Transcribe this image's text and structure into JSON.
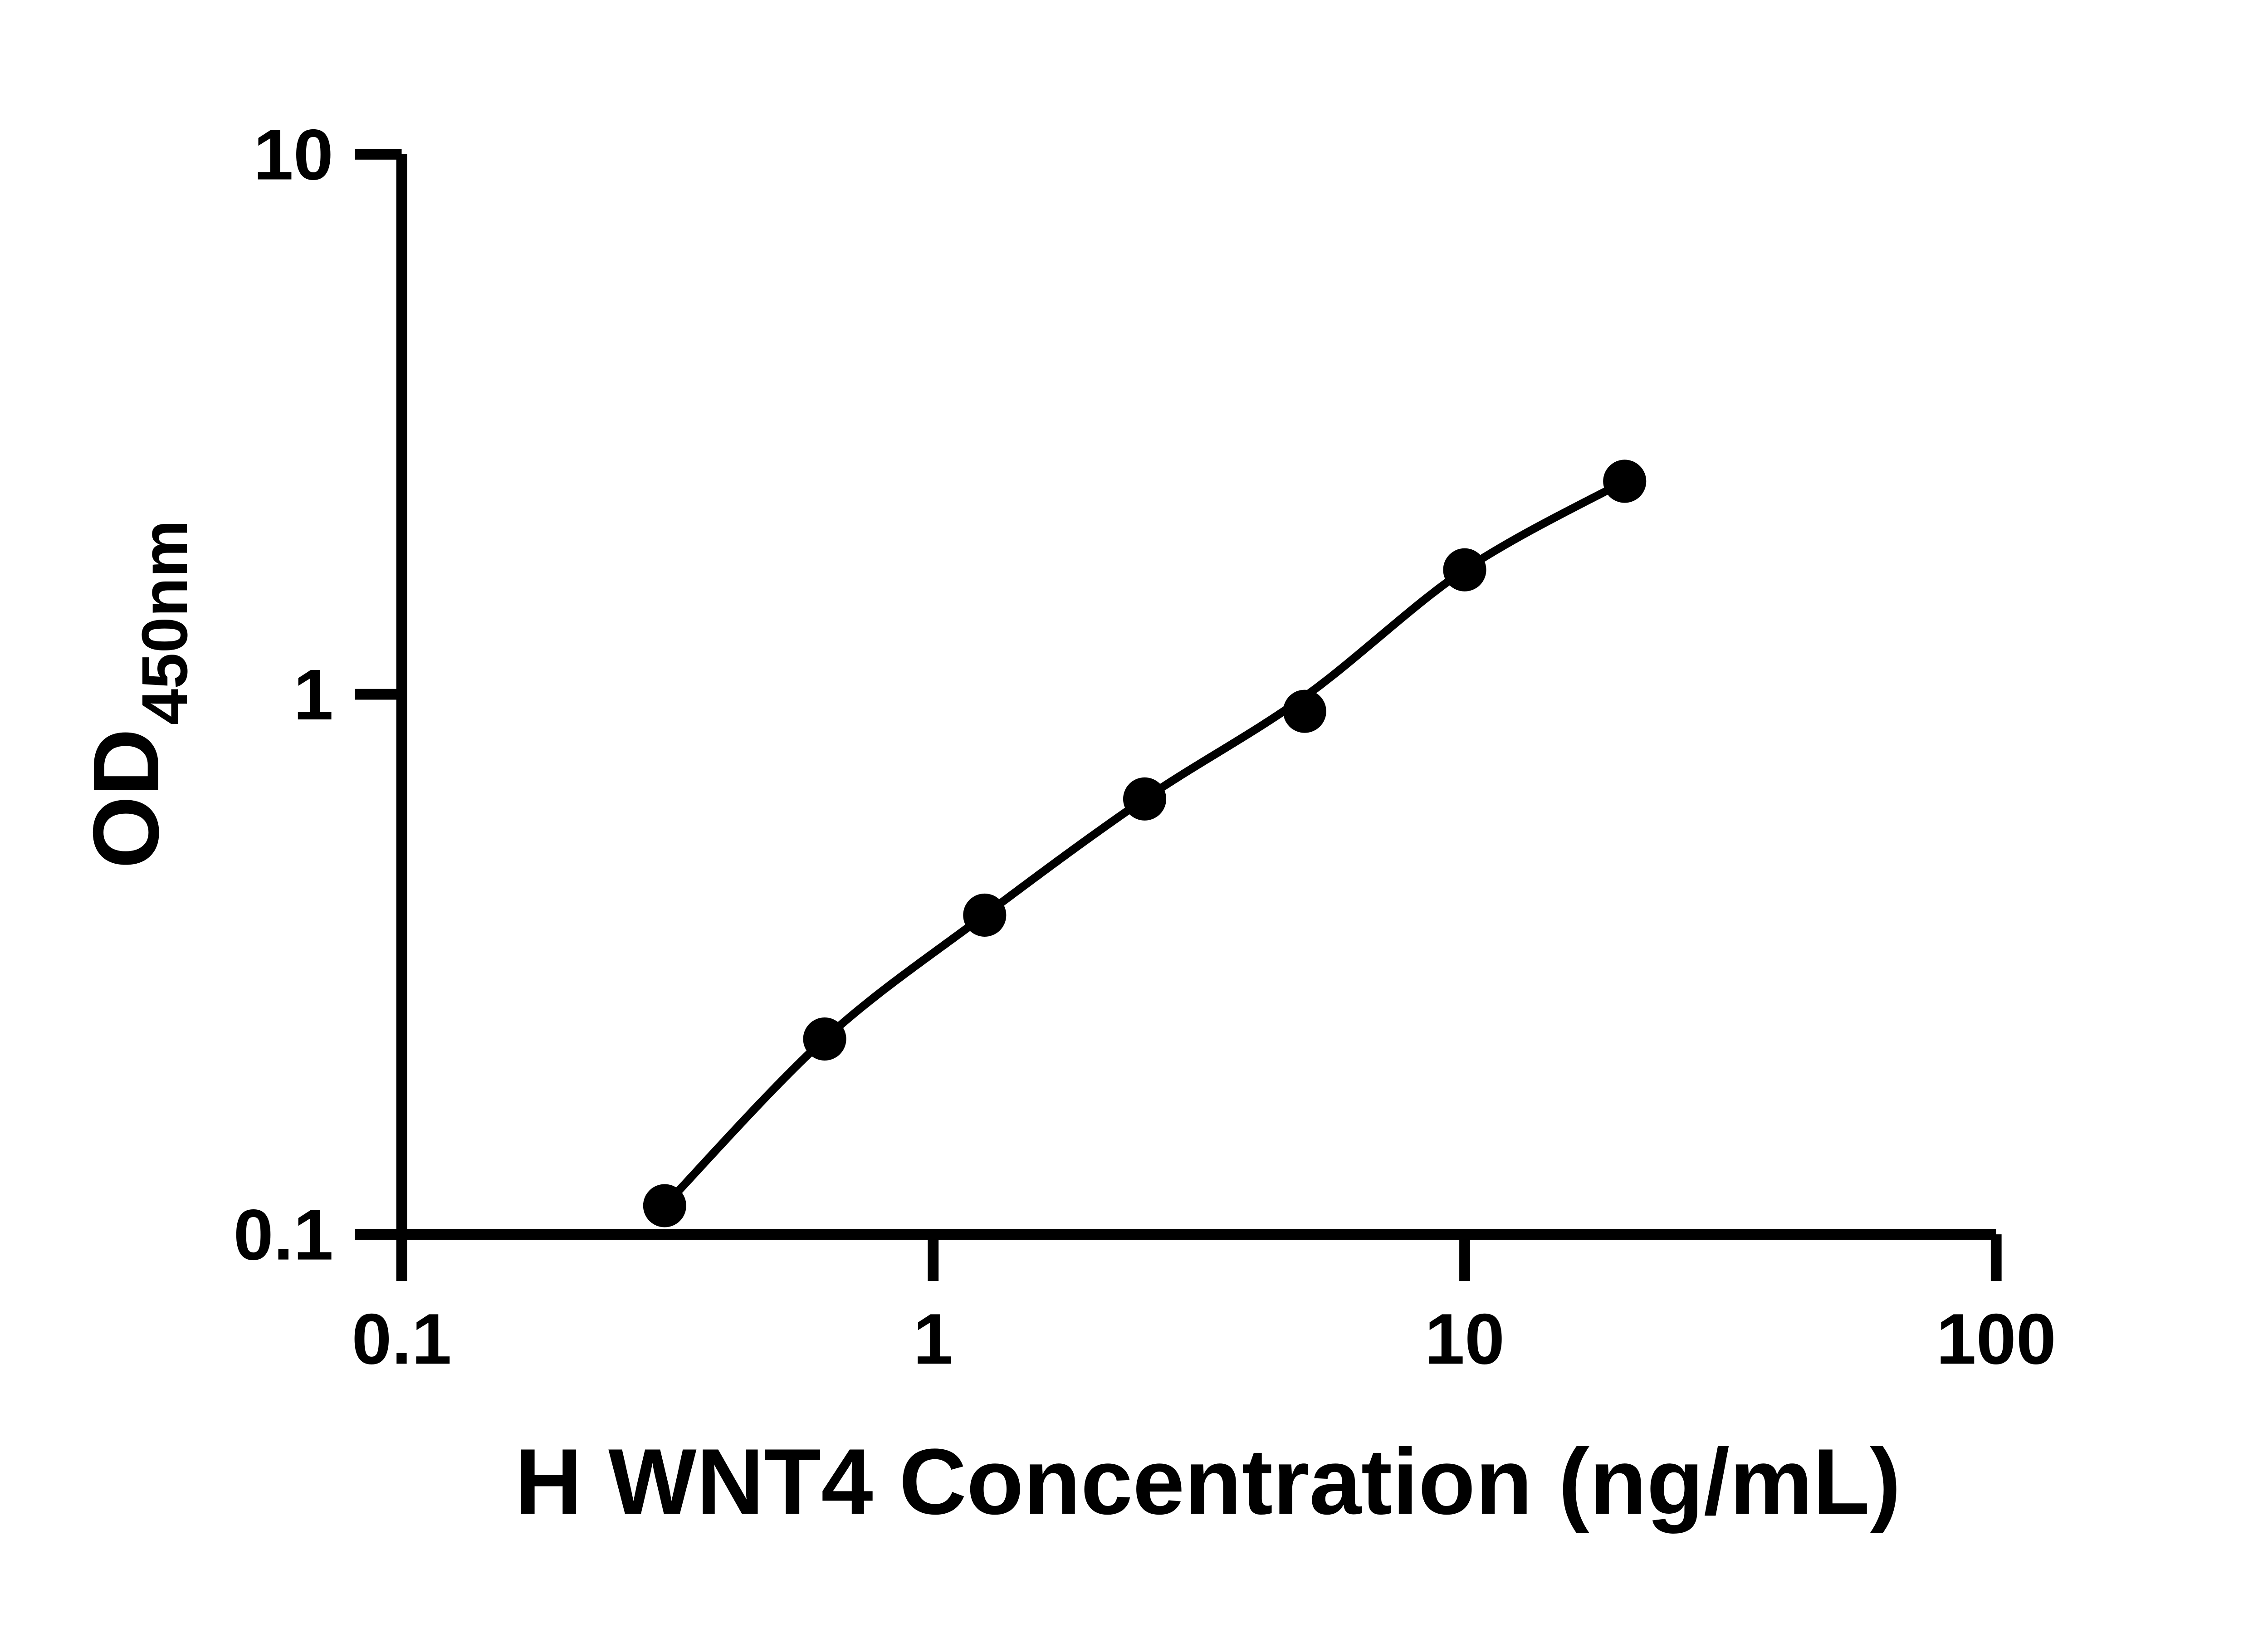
{
  "chart_data": {
    "type": "scatter",
    "xlabel": "H WNT4 Concentration (ng/mL)",
    "ylabel_main": "OD",
    "ylabel_sub": "450nm",
    "x_scale": "log",
    "y_scale": "log",
    "xlim": [
      0.1,
      100
    ],
    "ylim": [
      0.1,
      10
    ],
    "x_ticks": [
      {
        "value": 0.1,
        "label": "0.1"
      },
      {
        "value": 1,
        "label": "1"
      },
      {
        "value": 10,
        "label": "10"
      },
      {
        "value": 100,
        "label": "100"
      }
    ],
    "y_ticks": [
      {
        "value": 0.1,
        "label": "0.1"
      },
      {
        "value": 1,
        "label": "1"
      },
      {
        "value": 10,
        "label": "10"
      }
    ],
    "grid": false,
    "legend": false,
    "color": "#000000",
    "background": "#ffffff",
    "marker": "filled-circle",
    "series": [
      {
        "points": [
          {
            "x": 0.3125,
            "y": 0.113
          },
          {
            "x": 0.625,
            "y": 0.23
          },
          {
            "x": 1.25,
            "y": 0.39
          },
          {
            "x": 2.5,
            "y": 0.64
          },
          {
            "x": 5,
            "y": 0.93
          },
          {
            "x": 10,
            "y": 1.7
          },
          {
            "x": 20,
            "y": 2.48
          }
        ]
      }
    ],
    "trend_line": {
      "x": [
        0.3125,
        0.625,
        1.25,
        2.5,
        5,
        10,
        20
      ],
      "y": [
        0.113,
        0.23,
        0.39,
        0.64,
        0.99,
        1.7,
        2.48
      ]
    }
  }
}
